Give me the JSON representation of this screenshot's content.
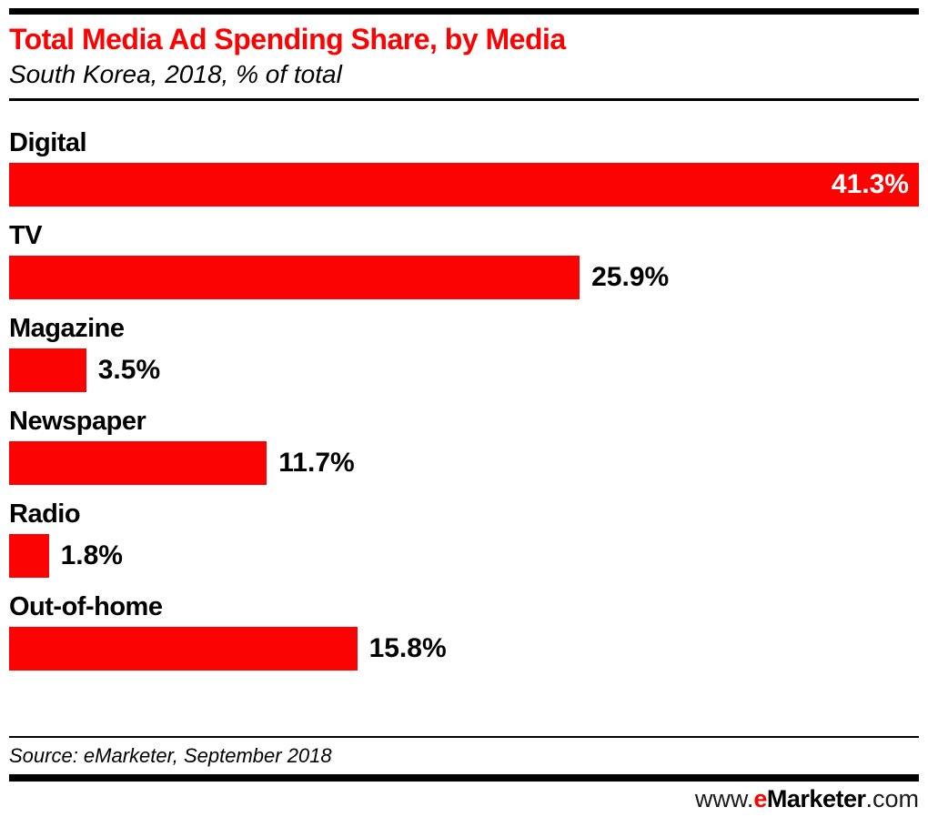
{
  "header": {
    "title": "Total Media Ad Spending Share, by Media",
    "subtitle": "South Korea, 2018, % of total"
  },
  "chart_data": {
    "type": "bar",
    "orientation": "horizontal",
    "title": "Total Media Ad Spending Share, by Media",
    "subtitle": "South Korea, 2018, % of total",
    "categories": [
      "Digital",
      "TV",
      "Magazine",
      "Newspaper",
      "Radio",
      "Out-of-home"
    ],
    "values": [
      41.3,
      25.9,
      3.5,
      11.7,
      1.8,
      15.8
    ],
    "value_labels": [
      "41.3%",
      "25.9%",
      "3.5%",
      "11.7%",
      "1.8%",
      "15.8%"
    ],
    "value_label_inside": [
      true,
      false,
      false,
      false,
      false,
      false
    ],
    "xlim": [
      0,
      41.3
    ],
    "grid": false,
    "legend": false,
    "bar_color": "#fa0302",
    "unit": "% of total"
  },
  "footer": {
    "source": "Source: eMarketer, September 2018",
    "site": {
      "www": "www.",
      "e": "e",
      "marketer": "Marketer",
      "com": ".com"
    }
  },
  "colors": {
    "accent_red": "#fa0302",
    "bar_red": "#fa0302",
    "black": "#000000",
    "inside_value_text": "#ffffff"
  }
}
